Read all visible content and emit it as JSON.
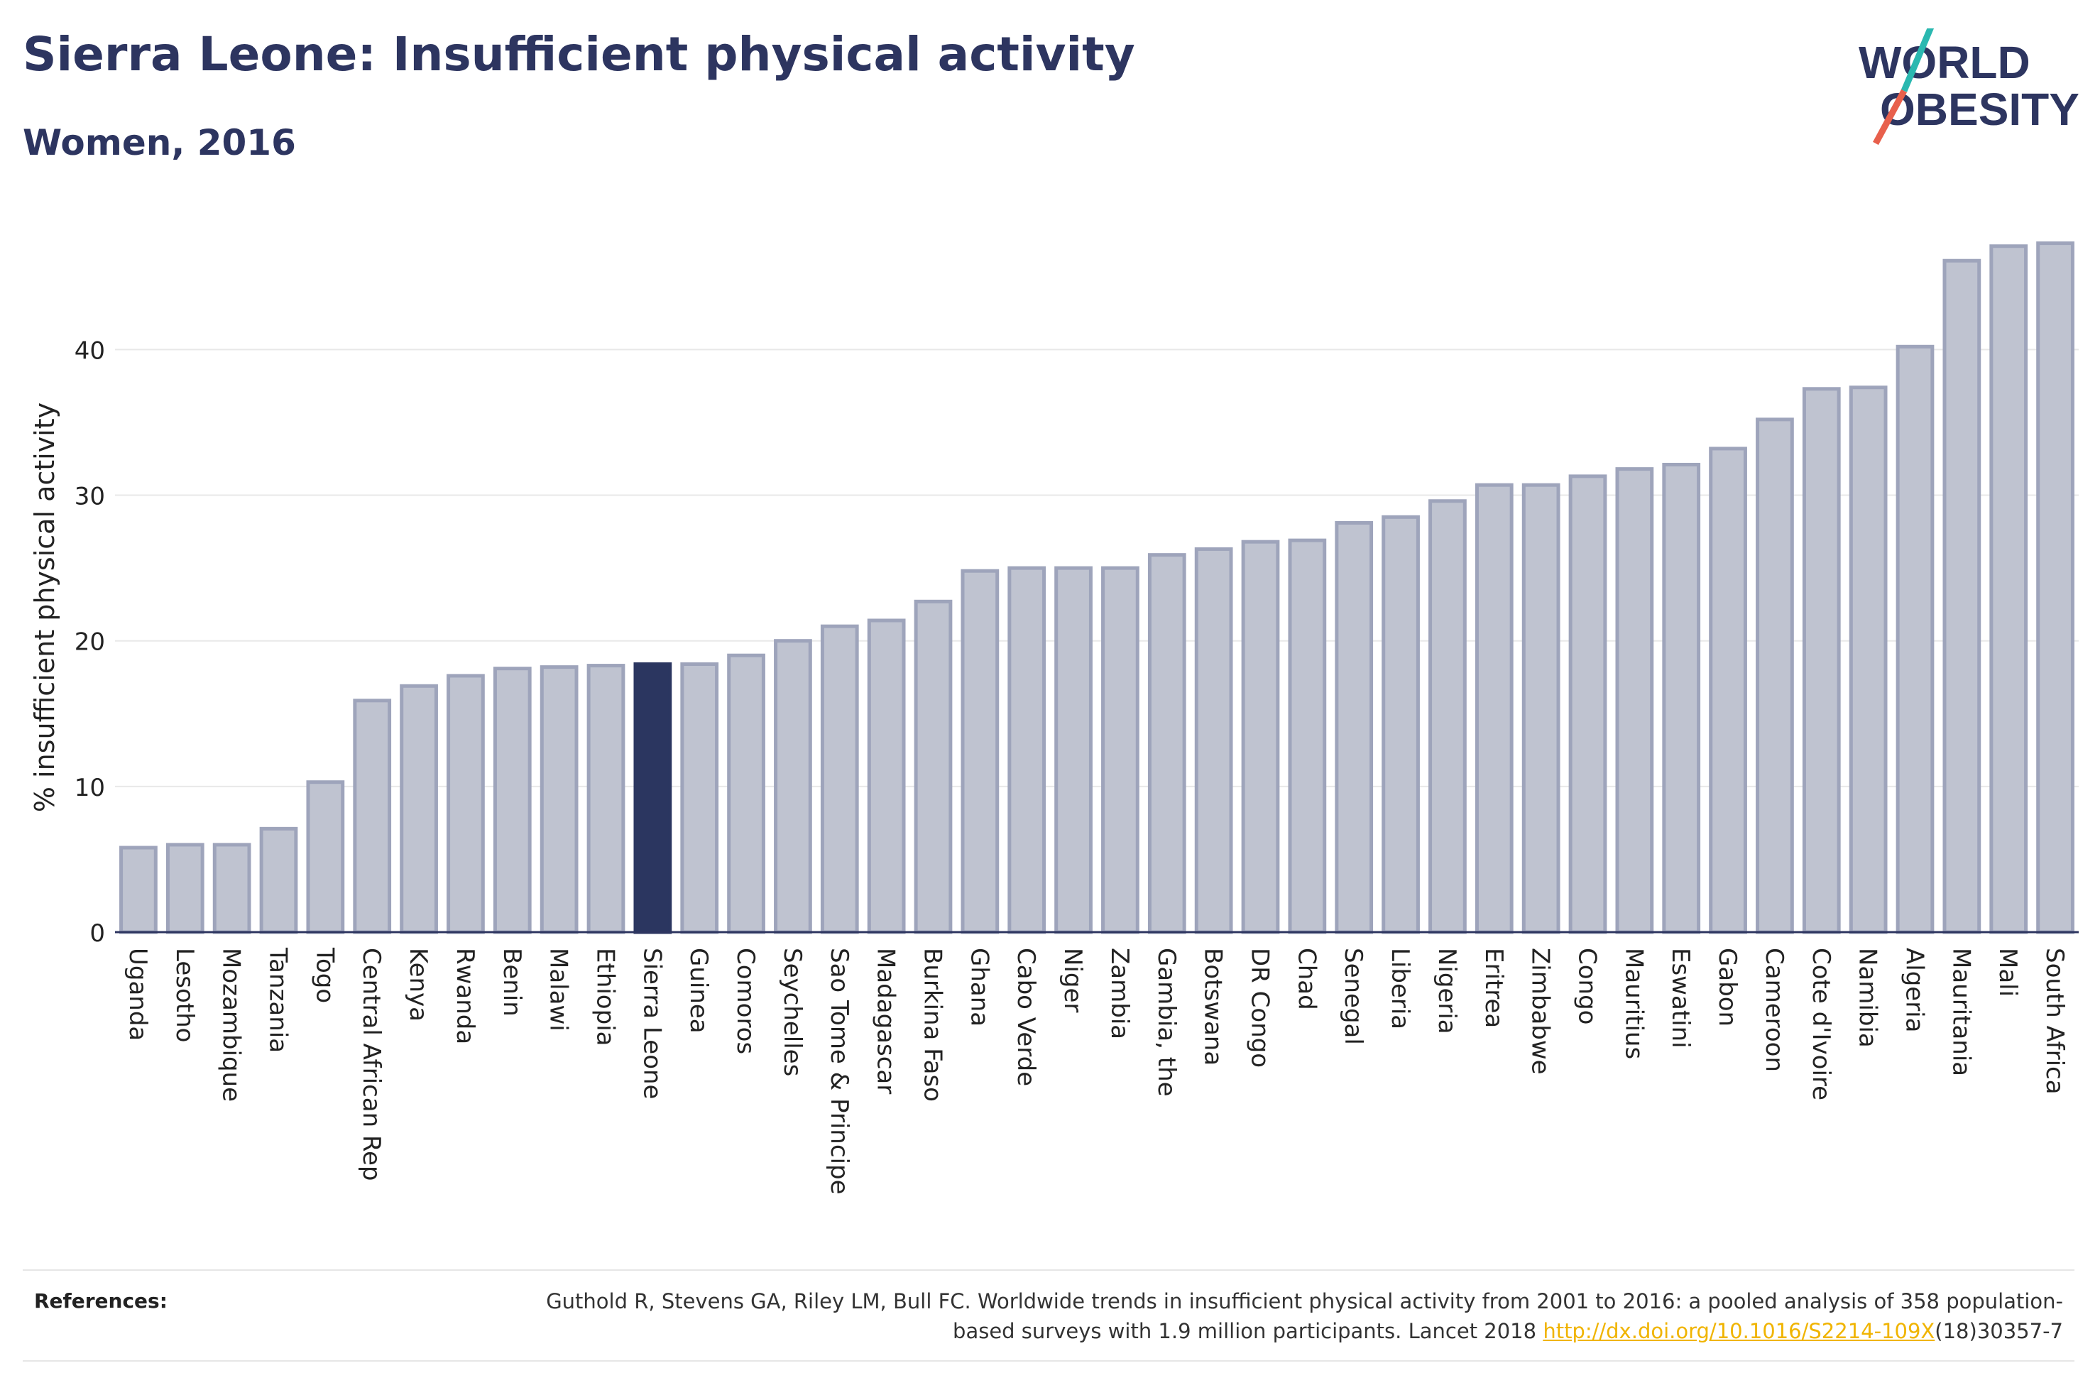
{
  "header": {
    "title": "Sierra Leone: Insufficient physical activity",
    "subtitle": "Women, 2016"
  },
  "logo": {
    "line1": "WORLD",
    "line2": "OBESITY"
  },
  "colors": {
    "bar": "#bfc3d0",
    "bar_stroke": "#9ea4bb",
    "highlight": "#2b3660",
    "title": "#2d3560",
    "logo_teal": "#2ab8b0",
    "logo_coral": "#e8604c",
    "link": "#f0b400"
  },
  "chart_data": {
    "type": "bar",
    "ylabel": "% insufficient physical activity",
    "xlabel": "",
    "ylim": [
      0,
      48.5
    ],
    "yticks": [
      0,
      10,
      20,
      30,
      40
    ],
    "grid": true,
    "highlight": "Sierra Leone",
    "categories": [
      "Uganda",
      "Lesotho",
      "Mozambique",
      "Tanzania",
      "Togo",
      "Central African Rep",
      "Kenya",
      "Rwanda",
      "Benin",
      "Malawi",
      "Ethiopia",
      "Sierra Leone",
      "Guinea",
      "Comoros",
      "Seychelles",
      "Sao Tome & Principe",
      "Madagascar",
      "Burkina Faso",
      "Ghana",
      "Cabo Verde",
      "Niger",
      "Zambia",
      "Gambia, the",
      "Botswana",
      "DR Congo",
      "Chad",
      "Senegal",
      "Liberia",
      "Nigeria",
      "Eritrea",
      "Zimbabwe",
      "Congo",
      "Mauritius",
      "Eswatini",
      "Gabon",
      "Cameroon",
      "Cote d'Ivoire",
      "Namibia",
      "Algeria",
      "Mauritania",
      "Mali",
      "South Africa"
    ],
    "values": [
      5.8,
      6.0,
      6.0,
      7.1,
      10.3,
      15.9,
      16.9,
      17.6,
      18.1,
      18.2,
      18.3,
      18.4,
      18.4,
      19.0,
      20.0,
      21.0,
      21.4,
      22.7,
      24.8,
      25.0,
      25.0,
      25.0,
      25.9,
      26.3,
      26.8,
      26.9,
      28.1,
      28.5,
      29.6,
      30.7,
      30.7,
      31.3,
      31.8,
      32.1,
      33.2,
      35.2,
      37.3,
      37.4,
      40.2,
      46.1,
      47.1,
      47.3
    ]
  },
  "references": {
    "label": "References:",
    "text_before": "Guthold R, Stevens GA, Riley LM, Bull FC. Worldwide trends in insufficient physical activity from 2001 to 2016: a pooled analysis of 358 population-based surveys with 1.9 million participants. Lancet 2018 ",
    "link_text": "http://dx.doi.org/10.1016/S2214-109X",
    "text_after": "(18)30357-7"
  }
}
